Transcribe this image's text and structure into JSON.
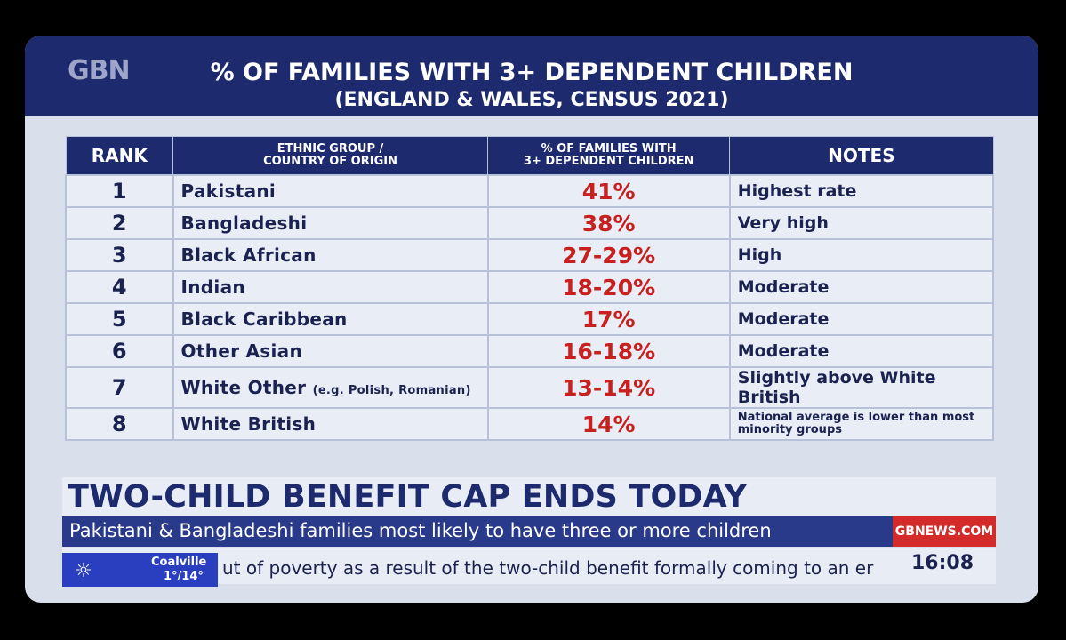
{
  "header": {
    "logo": "GBN",
    "title": "% OF FAMILIES WITH 3+ DEPENDENT CHILDREN",
    "subtitle": "(ENGLAND & WALES, CENSUS 2021)"
  },
  "table": {
    "columns": [
      "RANK",
      "ETHNIC GROUP / COUNTRY OF ORIGIN",
      "% OF FAMILIES WITH 3+ DEPENDENT CHILDREN",
      "NOTES"
    ],
    "column_lines": {
      "group_1": "ETHNIC GROUP /",
      "group_2": "COUNTRY OF ORIGIN",
      "pct_1": "% OF FAMILIES WITH",
      "pct_2": "3+ DEPENDENT CHILDREN"
    },
    "rows": [
      {
        "rank": "1",
        "group": "Pakistani",
        "detail": "",
        "pct": "41%",
        "note": "Highest rate"
      },
      {
        "rank": "2",
        "group": "Bangladeshi",
        "detail": "",
        "pct": "38%",
        "note": "Very high"
      },
      {
        "rank": "3",
        "group": "Black African",
        "detail": "",
        "pct": "27-29%",
        "note": "High"
      },
      {
        "rank": "4",
        "group": "Indian",
        "detail": "",
        "pct": "18-20%",
        "note": "Moderate"
      },
      {
        "rank": "5",
        "group": "Black Caribbean",
        "detail": "",
        "pct": "17%",
        "note": "Moderate"
      },
      {
        "rank": "6",
        "group": "Other Asian",
        "detail": "",
        "pct": "16-18%",
        "note": "Moderate"
      },
      {
        "rank": "7",
        "group": "White Other",
        "detail": "(e.g. Polish, Romanian)",
        "pct": "13-14%",
        "note": "Slightly above White British"
      },
      {
        "rank": "8",
        "group": "White British",
        "detail": "",
        "pct": "14%",
        "note": "National average is lower than most minority groups"
      }
    ]
  },
  "lower_third": {
    "headline": "TWO-CHILD BENEFIT CAP ENDS TODAY",
    "strap": "Pakistani & Bangladeshi families most likely to have three or more children",
    "channel_url": "GBNEWS.COM"
  },
  "ticker": {
    "weather_city": "Coalville",
    "weather_temp": "1°/14°",
    "weather_icon": "sun-icon",
    "text": "ut of poverty as a result of the two-child benefit formally coming to an er",
    "time": "16:08"
  },
  "colors": {
    "navy": "#1e2a6e",
    "red": "#c7201e",
    "row_bg": "#e9eef6"
  }
}
